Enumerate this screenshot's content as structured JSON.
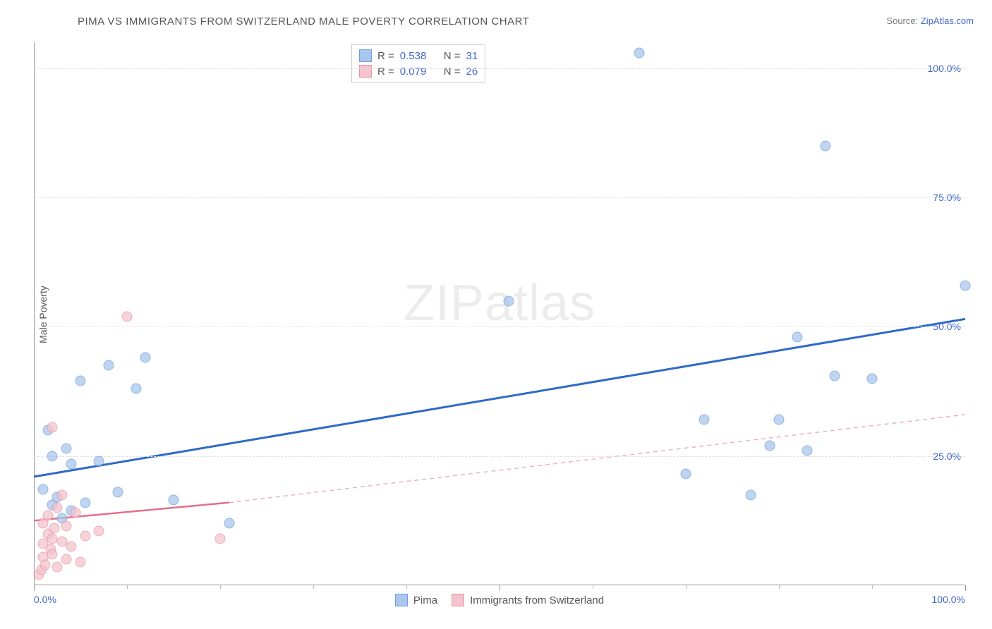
{
  "title": "PIMA VS IMMIGRANTS FROM SWITZERLAND MALE POVERTY CORRELATION CHART",
  "source_label": "Source:",
  "source_name": "ZipAtlas.com",
  "y_axis_label": "Male Poverty",
  "watermark": "ZIPatlas",
  "chart": {
    "type": "scatter",
    "xlim": [
      0,
      100
    ],
    "ylim": [
      0,
      105
    ],
    "x_ticks_major": [
      0,
      50,
      100
    ],
    "x_ticks_minor": [
      10,
      20,
      30,
      40,
      60,
      70,
      80,
      90
    ],
    "y_ticks": [
      25,
      50,
      75,
      100
    ],
    "x_tick_labels": {
      "0": "0.0%",
      "100": "100.0%"
    },
    "y_tick_labels": {
      "25": "25.0%",
      "50": "50.0%",
      "75": "75.0%",
      "100": "100.0%"
    },
    "background_color": "#ffffff",
    "grid_color": "#e0e0e0",
    "axis_color": "#999999",
    "tick_label_color": "#4169c9",
    "point_radius": 7.5,
    "series": [
      {
        "name": "Pima",
        "color_fill": "#a9c6ec",
        "color_stroke": "#6f9ed9",
        "r": 0.538,
        "n": 31,
        "trend": {
          "x1": 0,
          "y1": 21,
          "x2": 100,
          "y2": 51.5,
          "color": "#2f69c9",
          "width": 3,
          "style": "solid"
        },
        "points": [
          [
            1,
            18.5
          ],
          [
            1.5,
            30
          ],
          [
            2,
            15.5
          ],
          [
            2,
            25
          ],
          [
            2.5,
            17
          ],
          [
            3,
            13
          ],
          [
            3.5,
            26.5
          ],
          [
            4,
            14.5
          ],
          [
            4,
            23.5
          ],
          [
            5,
            39.5
          ],
          [
            5.5,
            16
          ],
          [
            7,
            24
          ],
          [
            8,
            42.5
          ],
          [
            9,
            18
          ],
          [
            11,
            38
          ],
          [
            12,
            44
          ],
          [
            15,
            16.5
          ],
          [
            21,
            12
          ],
          [
            51,
            55
          ],
          [
            65,
            103
          ],
          [
            70,
            21.5
          ],
          [
            72,
            32
          ],
          [
            77,
            17.5
          ],
          [
            79,
            27
          ],
          [
            80,
            32
          ],
          [
            82,
            48
          ],
          [
            83,
            26
          ],
          [
            85,
            85
          ],
          [
            86,
            40.5
          ],
          [
            90,
            40
          ],
          [
            100,
            58
          ]
        ]
      },
      {
        "name": "Immigrants from Switzerland",
        "color_fill": "#f4c3cd",
        "color_stroke": "#e795a6",
        "r": 0.079,
        "n": 26,
        "trend_solid": {
          "x1": 0,
          "y1": 12.5,
          "x2": 21,
          "y2": 16,
          "color": "#e46f8b",
          "width": 2.5,
          "style": "solid"
        },
        "trend_dashed": {
          "x1": 21,
          "y1": 16,
          "x2": 100,
          "y2": 33,
          "color": "#efb0be",
          "width": 1.5,
          "style": "dashed"
        },
        "points": [
          [
            0.5,
            2
          ],
          [
            0.8,
            3
          ],
          [
            1,
            5.5
          ],
          [
            1,
            8
          ],
          [
            1,
            12
          ],
          [
            1.2,
            4
          ],
          [
            1.5,
            10
          ],
          [
            1.5,
            13.5
          ],
          [
            1.8,
            7
          ],
          [
            2,
            6
          ],
          [
            2,
            9
          ],
          [
            2,
            30.5
          ],
          [
            2.2,
            11
          ],
          [
            2.5,
            3.5
          ],
          [
            2.5,
            15
          ],
          [
            3,
            8.5
          ],
          [
            3,
            17.5
          ],
          [
            3.5,
            5
          ],
          [
            3.5,
            11.5
          ],
          [
            4,
            7.5
          ],
          [
            4.5,
            14
          ],
          [
            5,
            4.5
          ],
          [
            5.5,
            9.5
          ],
          [
            7,
            10.5
          ],
          [
            10,
            52
          ],
          [
            20,
            9
          ]
        ]
      }
    ],
    "legend_top": {
      "r_label": "R =",
      "n_label": "N =",
      "value_color": "#4169c9",
      "label_color": "#555555"
    },
    "legend_bottom": [
      {
        "label": "Pima",
        "fill": "#a9c6ec",
        "stroke": "#6f9ed9"
      },
      {
        "label": "Immigrants from Switzerland",
        "fill": "#f4c3cd",
        "stroke": "#e795a6"
      }
    ]
  }
}
